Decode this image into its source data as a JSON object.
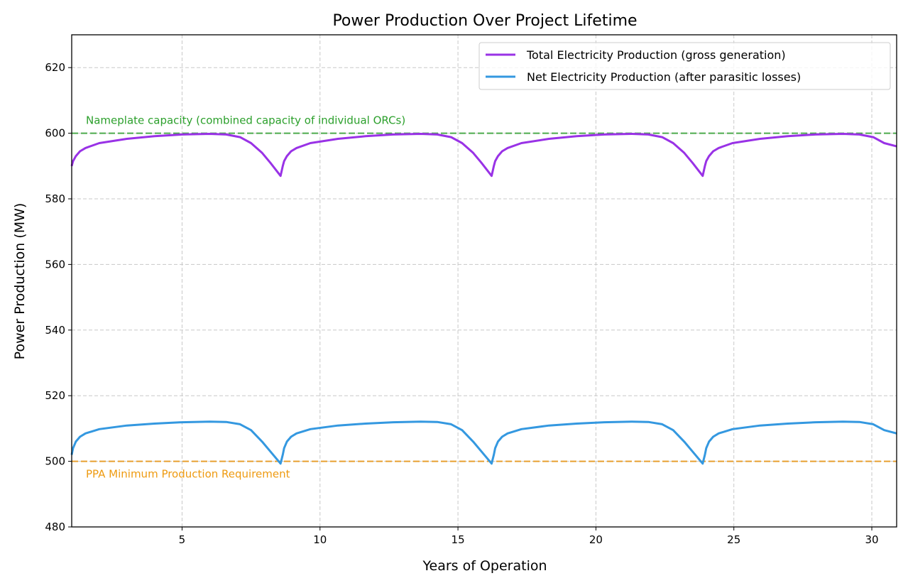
{
  "chart_data": {
    "type": "line",
    "title": "Power Production Over Project Lifetime",
    "xlabel": "Years of Operation",
    "ylabel": "Power Production (MW)",
    "xlim": [
      1,
      30.9
    ],
    "ylim": [
      480,
      630
    ],
    "xticks": [
      5,
      10,
      15,
      20,
      25,
      30
    ],
    "yticks": [
      480,
      500,
      520,
      540,
      560,
      580,
      600,
      620
    ],
    "grid": true,
    "legend": "top-right",
    "x": [
      1,
      1.05,
      1.15,
      1.3,
      1.5,
      2,
      3,
      4,
      5,
      6,
      6.6,
      7.1,
      7.5,
      7.9,
      8.2,
      8.57,
      8.65,
      8.7,
      8.8,
      8.95,
      9.15,
      9.65,
      10.65,
      11.65,
      12.65,
      13.65,
      14.25,
      14.75,
      15.15,
      15.55,
      15.85,
      16.22,
      16.3,
      16.35,
      16.45,
      16.6,
      16.8,
      17.3,
      18.3,
      19.3,
      20.3,
      21.3,
      21.9,
      22.4,
      22.8,
      23.2,
      23.5,
      23.87,
      23.95,
      24,
      24.1,
      24.25,
      24.45,
      24.95,
      25.95,
      26.95,
      27.95,
      28.95,
      29.55,
      30.05,
      30.45,
      30.9
    ],
    "series": [
      {
        "name": "Total Electricity Production (gross generation)",
        "color": "#9932e6",
        "values": [
          590,
          591.5,
          593,
          594.5,
          595.5,
          597,
          598.3,
          599.1,
          599.6,
          599.8,
          599.6,
          598.8,
          597,
          594,
          591,
          587,
          590,
          591.5,
          593,
          594.5,
          595.5,
          597,
          598.3,
          599.1,
          599.6,
          599.8,
          599.6,
          598.8,
          597,
          594,
          591,
          587,
          590,
          591.5,
          593,
          594.5,
          595.5,
          597,
          598.3,
          599.1,
          599.6,
          599.8,
          599.6,
          598.8,
          597,
          594,
          591,
          587,
          590,
          591.5,
          593,
          594.5,
          595.5,
          597,
          598.3,
          599.1,
          599.6,
          599.8,
          599.6,
          598.8,
          597,
          596
        ]
      },
      {
        "name": "Net Electricity Production (after parasitic losses)",
        "color": "#3498e0",
        "values": [
          502,
          504,
          506,
          507.5,
          508.5,
          509.8,
          510.9,
          511.5,
          511.9,
          512.1,
          512,
          511.3,
          509.5,
          506,
          503,
          499.3,
          502,
          504,
          506,
          507.5,
          508.5,
          509.8,
          510.9,
          511.5,
          511.9,
          512.1,
          512,
          511.3,
          509.5,
          506,
          503,
          499.3,
          502,
          504,
          506,
          507.5,
          508.5,
          509.8,
          510.9,
          511.5,
          511.9,
          512.1,
          512,
          511.3,
          509.5,
          506,
          503,
          499.3,
          502,
          504,
          506,
          507.5,
          508.5,
          509.8,
          510.9,
          511.5,
          511.9,
          512.1,
          512,
          511.3,
          509.5,
          508.5
        ]
      }
    ],
    "reference_lines": [
      {
        "value": 600,
        "label": "Nameplate capacity (combined capacity of individual ORCs)",
        "color": "#4caa4c",
        "text_color": "#2ca02c"
      },
      {
        "value": 500,
        "label": "PPA Minimum Production Requirement",
        "color": "#e8a030",
        "text_color": "#ee9a10"
      }
    ]
  }
}
